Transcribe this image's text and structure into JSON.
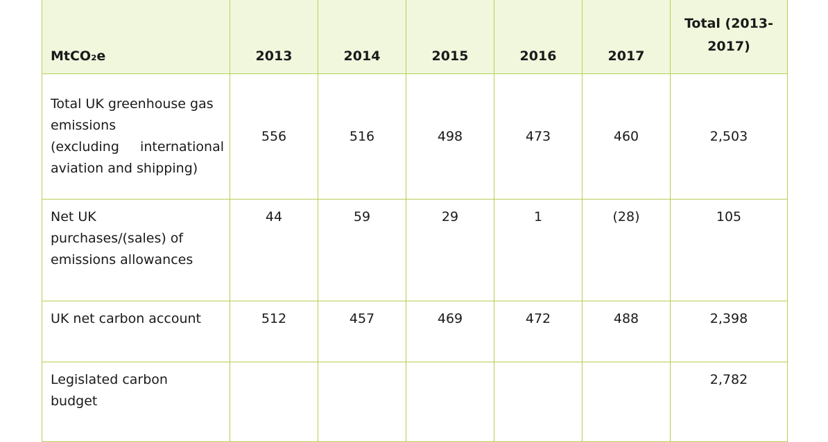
{
  "table": {
    "header": {
      "unit": "MtCO₂e",
      "years": [
        "2013",
        "2014",
        "2015",
        "2016",
        "2017"
      ],
      "total_line1": "Total (2013-",
      "total_line2": "2017)"
    },
    "rows": [
      {
        "label_lines": [
          "Total UK greenhouse gas",
          "emissions",
          "(excluding international",
          "aviation and shipping)"
        ],
        "values": [
          "556",
          "516",
          "498",
          "473",
          "460"
        ],
        "total": "2,503"
      },
      {
        "label_lines": [
          "Net UK",
          "purchases/(sales) of",
          "emissions allowances"
        ],
        "values": [
          "44",
          "59",
          "29",
          "1",
          "(28)"
        ],
        "total": "105"
      },
      {
        "label_lines": [
          "UK net carbon account"
        ],
        "values": [
          "512",
          "457",
          "469",
          "472",
          "488"
        ],
        "total": "2,398"
      },
      {
        "label_lines": [
          "Legislated carbon",
          "budget"
        ],
        "values": [
          "",
          "",
          "",
          "",
          ""
        ],
        "total": "2,782"
      }
    ]
  }
}
